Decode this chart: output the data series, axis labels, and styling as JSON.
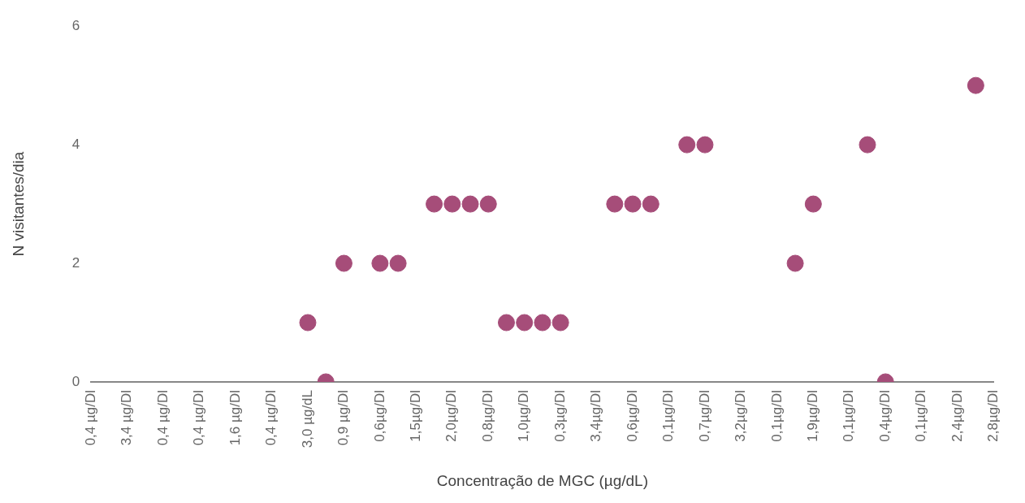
{
  "chart_data": {
    "type": "scatter",
    "xlabel": "Concentração de MGC (µg/dL)",
    "ylabel": "N visitantes/dia",
    "categories": [
      "0,4 µg/Dl",
      null,
      "3,4 µg/Dl",
      null,
      "0,4 µg/Dl",
      null,
      "0,4 µg/Dl",
      null,
      "1,6 µg/Dl",
      null,
      "0,4 µg/Dl",
      null,
      "3,0 µg/dL",
      null,
      "0,9 µg/Dl",
      null,
      "0,6µg/Dl",
      null,
      "1,5µg/Dl",
      null,
      "2,0µg/Dl",
      null,
      "0,8µg/Dl",
      null,
      "1,0µg/Dl",
      null,
      "0,3µg/Dl",
      null,
      "3,4µg/Dl",
      null,
      "0,6µg/Dl",
      null,
      "0,1µg/Dl",
      null,
      "0,7µg/Dl",
      null,
      "3,2µg/Dl",
      null,
      "0,1µg/Dl",
      null,
      "1,9µg/Dl",
      null,
      "0,1µg/Dl",
      null,
      "0,4µg/Dl",
      null,
      "0,1µg/Dl",
      null,
      "2,4µg/Dl",
      null,
      "2,8µg/Dl"
    ],
    "values": [
      null,
      null,
      null,
      null,
      null,
      null,
      null,
      null,
      null,
      null,
      null,
      null,
      1,
      0,
      2,
      null,
      2,
      2,
      null,
      3,
      3,
      3,
      3,
      1,
      1,
      1,
      1,
      null,
      null,
      3,
      3,
      3,
      null,
      4,
      4,
      null,
      null,
      null,
      null,
      2,
      3,
      null,
      null,
      4,
      0,
      null,
      null,
      null,
      null,
      5,
      null
    ],
    "color": "#a64d79",
    "marker": "circle",
    "ylim": [
      0,
      6
    ],
    "yticks": [
      0,
      2,
      4,
      6
    ],
    "grid": false,
    "legend": false
  }
}
